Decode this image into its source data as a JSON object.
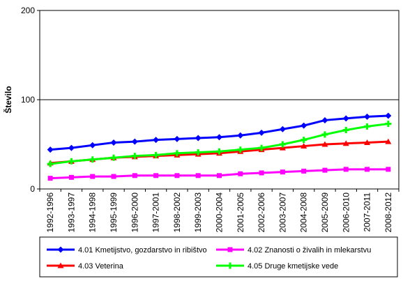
{
  "chart_data": {
    "type": "line",
    "title": "",
    "xlabel": "",
    "ylabel": "Število",
    "ylim": [
      0,
      200
    ],
    "yticks": [
      0,
      100,
      200
    ],
    "grid": "horizontal major gridlines",
    "legend_position": "bottom",
    "categories": [
      "1992-1996",
      "1993-1997",
      "1994-1998",
      "1995-1999",
      "1996-2000",
      "1997-2001",
      "1998-2002",
      "1999-2003",
      "2000-2004",
      "2001-2005",
      "2002-2006",
      "2003-2007",
      "2004-2008",
      "2005-2009",
      "2006-2010",
      "2007-2011",
      "2008-2012"
    ],
    "series": [
      {
        "name": "4.01 Kmetijstvo, gozdarstvo in ribištvo",
        "color": "#0000ff",
        "marker": "diamond",
        "values": [
          44,
          46,
          49,
          52,
          53,
          55,
          56,
          57,
          58,
          60,
          63,
          67,
          71,
          77,
          79,
          81,
          82
        ]
      },
      {
        "name": "4.02 Znanosti o živalih in mlekarstvu",
        "color": "#ff00ff",
        "marker": "square",
        "values": [
          12,
          13,
          14,
          14,
          15,
          15,
          15,
          15,
          15,
          17,
          18,
          19,
          20,
          21,
          22,
          22,
          22
        ]
      },
      {
        "name": "4.03 Veterina",
        "color": "#ff0000",
        "marker": "triangle",
        "values": [
          29,
          31,
          33,
          35,
          36,
          37,
          38,
          39,
          40,
          42,
          44,
          46,
          48,
          50,
          51,
          52,
          53
        ]
      },
      {
        "name": "4.05 Druge kmetijske vede",
        "color": "#00ff00",
        "marker": "cross",
        "values": [
          28,
          31,
          33,
          35,
          37,
          38,
          40,
          41,
          42,
          44,
          46,
          50,
          55,
          61,
          66,
          70,
          73
        ]
      }
    ]
  }
}
